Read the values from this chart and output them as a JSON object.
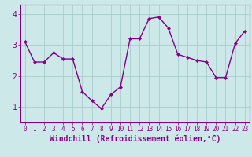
{
  "x": [
    0,
    1,
    2,
    3,
    4,
    5,
    6,
    7,
    8,
    9,
    10,
    11,
    12,
    13,
    14,
    15,
    16,
    17,
    18,
    19,
    20,
    21,
    22,
    23
  ],
  "y": [
    3.1,
    2.45,
    2.45,
    2.75,
    2.55,
    2.55,
    1.5,
    1.2,
    0.95,
    1.4,
    1.65,
    3.2,
    3.2,
    3.85,
    3.9,
    3.55,
    2.7,
    2.6,
    2.5,
    2.45,
    1.95,
    1.95,
    3.05,
    3.45
  ],
  "line_color": "#880088",
  "marker": "D",
  "marker_size": 2.0,
  "bg_color": "#cce8e8",
  "grid_color": "#aacccc",
  "xlabel": "Windchill (Refroidissement éolien,°C)",
  "xlabel_color": "#880088",
  "ylim": [
    0.5,
    4.3
  ],
  "xlim": [
    -0.5,
    23.5
  ],
  "yticks": [
    1,
    2,
    3,
    4
  ],
  "xticks": [
    0,
    1,
    2,
    3,
    4,
    5,
    6,
    7,
    8,
    9,
    10,
    11,
    12,
    13,
    14,
    15,
    16,
    17,
    18,
    19,
    20,
    21,
    22,
    23
  ],
  "tick_label_color": "#880088",
  "axis_color": "#880088",
  "xtick_fontsize": 5.5,
  "ytick_fontsize": 7,
  "xlabel_fontsize": 7,
  "line_width": 1.0
}
